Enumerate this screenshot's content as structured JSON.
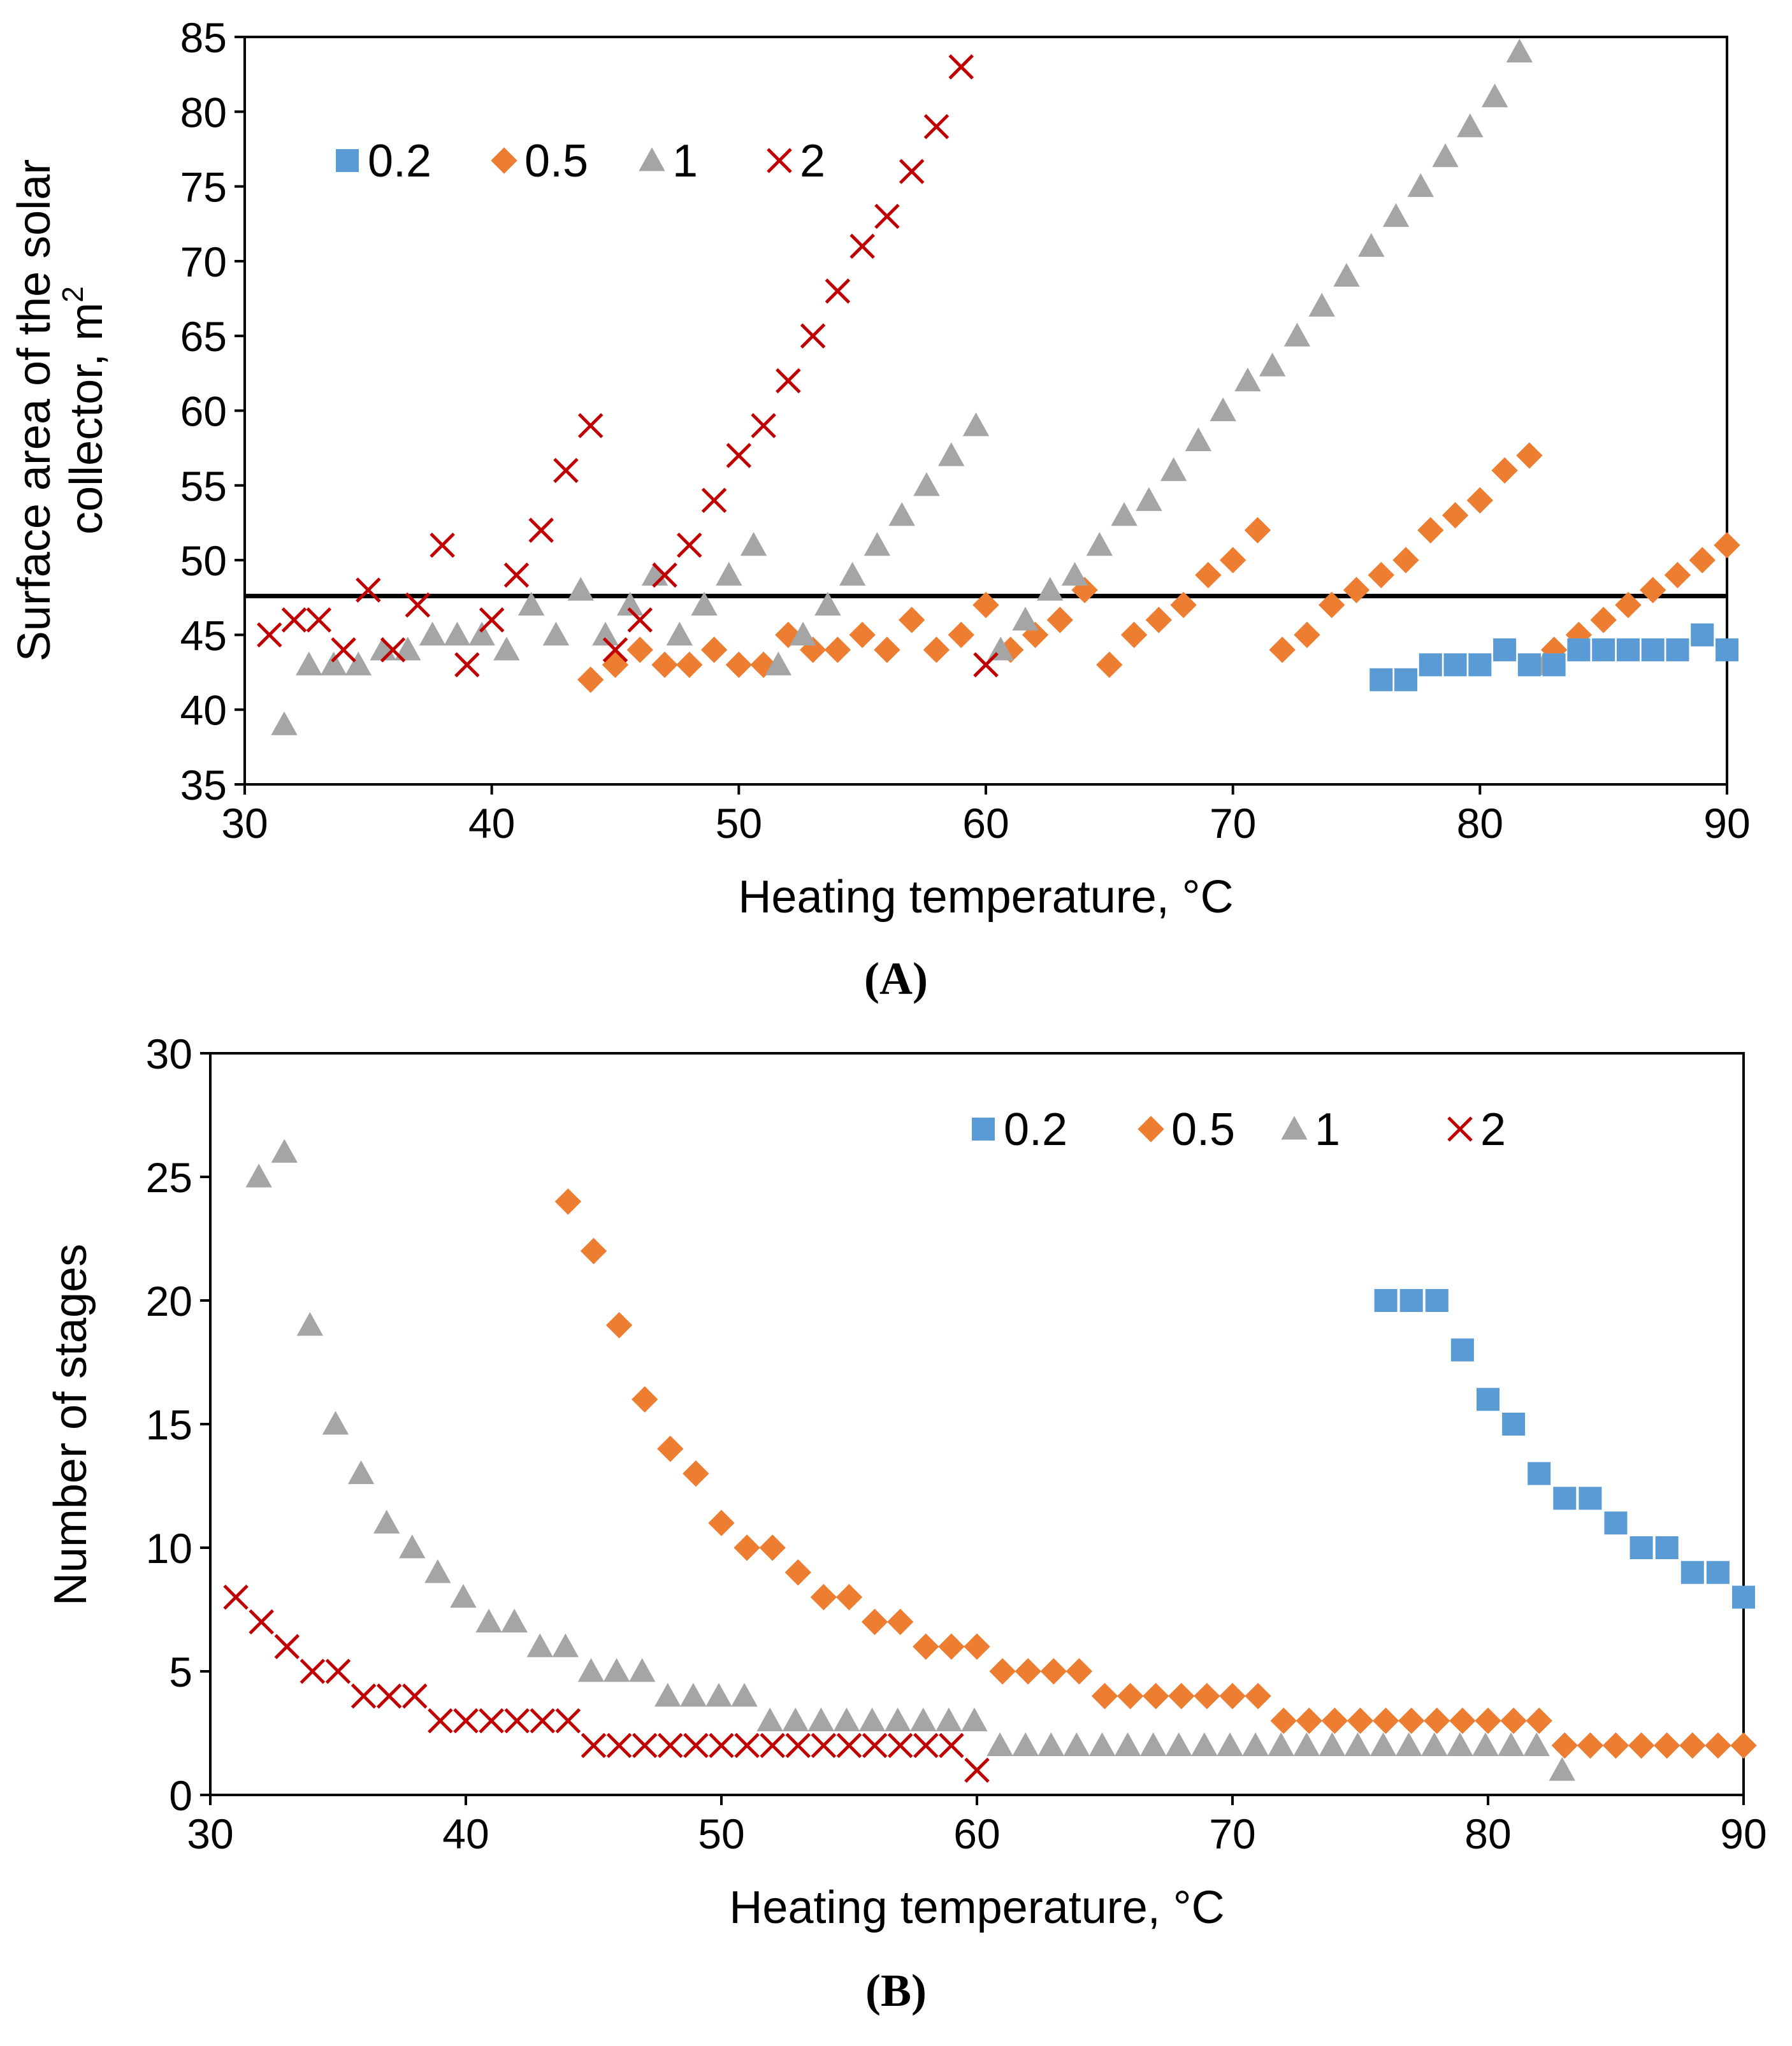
{
  "colors": {
    "s0.2": "#5b9bd5",
    "s0.5": "#ed7d31",
    "s1": "#a5a5a5",
    "s2": "#c00000",
    "refline": "#000000"
  },
  "chart_data": [
    {
      "type": "scatter",
      "panel_label": "A",
      "xlabel": "Heating temperature, °C",
      "ylabel_line1": "Surface area of the solar",
      "ylabel_line2": "collector, m",
      "ylabel_sup": "2",
      "xlim": [
        30,
        90
      ],
      "ylim": [
        35,
        85
      ],
      "xticks": [
        30,
        40,
        50,
        60,
        70,
        80,
        90
      ],
      "yticks": [
        35,
        40,
        45,
        50,
        55,
        60,
        65,
        70,
        75,
        80,
        85
      ],
      "reference_line_y": 47.6,
      "legend": [
        "0.2",
        "0.5",
        "1",
        "2"
      ],
      "series": [
        {
          "name": "0.2",
          "marker": "square",
          "x": [
            76,
            77,
            78,
            79,
            80,
            81,
            82,
            83,
            84,
            85,
            86,
            87,
            88,
            89,
            90
          ],
          "y": [
            42,
            42,
            43,
            43,
            43,
            44,
            43,
            43,
            44,
            44,
            44,
            44,
            44,
            45,
            44
          ]
        },
        {
          "name": "0.5",
          "marker": "diamond",
          "x": [
            44,
            45,
            46,
            47,
            48,
            49,
            50,
            51,
            52,
            53,
            54,
            55,
            56,
            57,
            58,
            59,
            60,
            61,
            62,
            63,
            64,
            65,
            66,
            67,
            68,
            69,
            70,
            71,
            72,
            73,
            74,
            75,
            76,
            77,
            78,
            79,
            80,
            81,
            82,
            83,
            84,
            85,
            86,
            87,
            88,
            89,
            90
          ],
          "y": [
            42,
            43,
            44,
            43,
            43,
            44,
            43,
            43,
            45,
            44,
            44,
            45,
            44,
            46,
            44,
            45,
            47,
            44,
            45,
            46,
            48,
            43,
            45,
            46,
            47,
            49,
            50,
            52,
            44,
            45,
            47,
            48,
            49,
            50,
            52,
            53,
            54,
            56,
            57,
            44,
            45,
            46,
            47,
            48,
            49,
            50,
            51
          ]
        },
        {
          "name": "1",
          "marker": "triangle",
          "x": [
            31.6,
            32.6,
            33.6,
            34.6,
            35.6,
            36.6,
            37.6,
            38.6,
            39.6,
            40.6,
            41.6,
            42.6,
            43.6,
            44.6,
            45.6,
            46.6,
            47.6,
            48.6,
            49.6,
            50.6,
            51.6,
            52.6,
            53.6,
            54.6,
            55.6,
            56.6,
            57.6,
            58.6,
            59.6,
            60.6,
            61.6,
            62.6,
            63.6,
            64.6,
            65.6,
            66.6,
            67.6,
            68.6,
            69.6,
            70.6,
            71.6,
            72.6,
            73.6,
            74.6,
            75.6,
            76.6,
            77.6,
            78.6,
            79.6,
            80.6,
            81.6,
            82.6
          ],
          "y": [
            39,
            43,
            43,
            43,
            44,
            44,
            45,
            45,
            45,
            44,
            47,
            45,
            48,
            45,
            47,
            49,
            45,
            47,
            49,
            51,
            43,
            45,
            47,
            49,
            51,
            53,
            55,
            57,
            59,
            44,
            46,
            48,
            49,
            51,
            53,
            54,
            56,
            58,
            60,
            62,
            63,
            65,
            67,
            69,
            71,
            73,
            75,
            77,
            79,
            81,
            84,
            43
          ]
        },
        {
          "name": "2",
          "marker": "x",
          "x": [
            31,
            32,
            33,
            34,
            35,
            36,
            37,
            38,
            39,
            40,
            41,
            42,
            43,
            44,
            45,
            46,
            47,
            48,
            49,
            50,
            51,
            52,
            53,
            54,
            55,
            56,
            57,
            58,
            59,
            60
          ],
          "y": [
            45,
            46,
            46,
            44,
            48,
            44,
            47,
            51,
            43,
            46,
            49,
            52,
            56,
            59,
            44,
            46,
            49,
            51,
            54,
            57,
            59,
            62,
            65,
            68,
            71,
            73,
            76,
            79,
            83,
            43
          ]
        }
      ]
    },
    {
      "type": "scatter",
      "panel_label": "B",
      "xlabel": "Heating temperature, °C",
      "ylabel": "Number of stages",
      "xlim": [
        30,
        90
      ],
      "ylim": [
        0,
        30
      ],
      "xticks": [
        30,
        40,
        50,
        60,
        70,
        80,
        90
      ],
      "yticks": [
        0,
        5,
        10,
        15,
        20,
        25,
        30
      ],
      "legend": [
        "0.2",
        "0.5",
        "1",
        "2"
      ],
      "series": [
        {
          "name": "0.2",
          "marker": "square",
          "x": [
            76,
            77,
            78,
            79,
            80,
            81,
            82,
            83,
            84,
            85,
            86,
            87,
            88,
            89,
            90
          ],
          "y": [
            20,
            20,
            20,
            18,
            16,
            15,
            13,
            12,
            12,
            11,
            10,
            10,
            9,
            9,
            8
          ]
        },
        {
          "name": "0.5",
          "marker": "diamond",
          "x": [
            44,
            45,
            46,
            47,
            48,
            49,
            50,
            51,
            52,
            53,
            54,
            55,
            56,
            57,
            58,
            59,
            60,
            61,
            62,
            63,
            64,
            65,
            66,
            67,
            68,
            69,
            70,
            71,
            72,
            73,
            74,
            75,
            76,
            77,
            78,
            79,
            80,
            81,
            82,
            83,
            84,
            85,
            86,
            87,
            88,
            89,
            90
          ],
          "y": [
            24,
            22,
            19,
            16,
            14,
            13,
            11,
            10,
            10,
            9,
            8,
            8,
            7,
            7,
            6,
            6,
            6,
            5,
            5,
            5,
            5,
            4,
            4,
            4,
            4,
            4,
            4,
            4,
            3,
            3,
            3,
            3,
            3,
            3,
            3,
            3,
            3,
            3,
            3,
            2,
            2,
            2,
            2,
            2,
            2,
            2,
            2
          ]
        },
        {
          "name": "1",
          "marker": "triangle",
          "x": [
            31.9,
            32.9,
            33.9,
            34.9,
            35.9,
            36.9,
            37.9,
            38.9,
            39.9,
            40.9,
            41.9,
            42.9,
            43.9,
            44.9,
            45.9,
            46.9,
            47.9,
            48.9,
            49.9,
            50.9,
            51.9,
            52.9,
            53.9,
            54.9,
            55.9,
            56.9,
            57.9,
            58.9,
            59.9,
            60.9,
            61.9,
            62.9,
            63.9,
            64.9,
            65.9,
            66.9,
            67.9,
            68.9,
            69.9,
            70.9,
            71.9,
            72.9,
            73.9,
            74.9,
            75.9,
            76.9,
            77.9,
            78.9,
            79.9,
            80.9,
            81.9,
            82.9
          ],
          "y": [
            25,
            26,
            19,
            15,
            13,
            11,
            10,
            9,
            8,
            7,
            7,
            6,
            6,
            5,
            5,
            5,
            4,
            4,
            4,
            4,
            3,
            3,
            3,
            3,
            3,
            3,
            3,
            3,
            3,
            2,
            2,
            2,
            2,
            2,
            2,
            2,
            2,
            2,
            2,
            2,
            2,
            2,
            2,
            2,
            2,
            2,
            2,
            2,
            2,
            2,
            2,
            1
          ]
        },
        {
          "name": "2",
          "marker": "x",
          "x": [
            31,
            32,
            33,
            34,
            35,
            36,
            37,
            38,
            39,
            40,
            41,
            42,
            43,
            44,
            45,
            46,
            47,
            48,
            49,
            50,
            51,
            52,
            53,
            54,
            55,
            56,
            57,
            58,
            59,
            60
          ],
          "y": [
            8,
            7,
            6,
            5,
            5,
            4,
            4,
            4,
            3,
            3,
            3,
            3,
            3,
            3,
            2,
            2,
            2,
            2,
            2,
            2,
            2,
            2,
            2,
            2,
            2,
            2,
            2,
            2,
            2,
            1
          ]
        }
      ]
    }
  ]
}
